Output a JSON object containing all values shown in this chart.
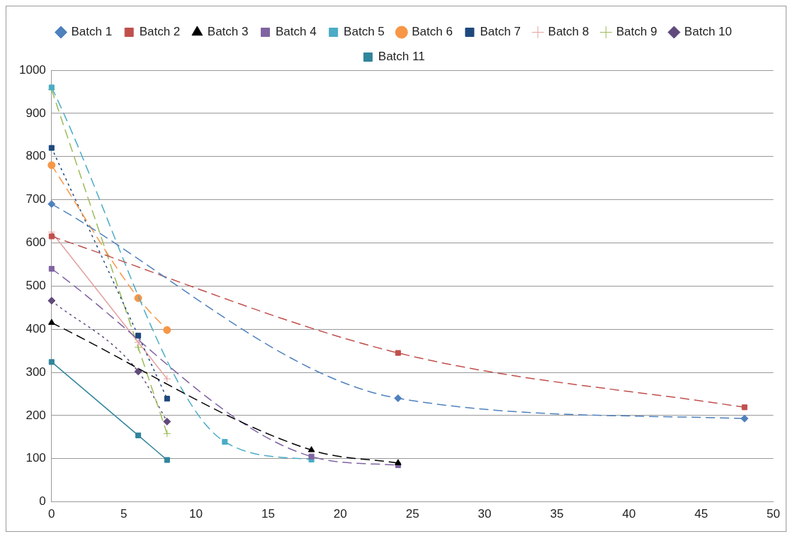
{
  "chart_data": {
    "type": "line",
    "legend": "top",
    "grid": "y",
    "xlim": [
      0,
      50
    ],
    "xticks": [
      0,
      5,
      10,
      15,
      20,
      25,
      30,
      35,
      40,
      45,
      50
    ],
    "ylim": [
      0,
      1000
    ],
    "yticks": [
      0,
      100,
      200,
      300,
      400,
      500,
      600,
      700,
      800,
      900,
      1000
    ],
    "series": [
      {
        "name": "Batch 1",
        "color": "#4f81bd",
        "marker": "diamond",
        "line_style": "dashed",
        "x": [
          0,
          24,
          48
        ],
        "values": [
          690,
          240,
          193
        ]
      },
      {
        "name": "Batch 2",
        "color": "#c0504d",
        "marker": "square",
        "line_style": "dashed",
        "x": [
          0,
          24,
          48
        ],
        "values": [
          615,
          345,
          219
        ]
      },
      {
        "name": "Batch 3",
        "color": "#000000",
        "marker": "triangle",
        "line_style": "dashed",
        "x": [
          0,
          18,
          24
        ],
        "values": [
          415,
          120,
          90
        ]
      },
      {
        "name": "Batch 4",
        "color": "#8064a2",
        "marker": "square",
        "line_style": "dashed",
        "x": [
          0,
          18,
          24
        ],
        "values": [
          540,
          105,
          85
        ]
      },
      {
        "name": "Batch 5",
        "color": "#4bacc6",
        "marker": "square",
        "line_style": "dashed",
        "x": [
          0,
          12,
          18
        ],
        "values": [
          960,
          139,
          98
        ]
      },
      {
        "name": "Batch 6",
        "color": "#f79646",
        "marker": "circle",
        "line_style": "dashed",
        "x": [
          0,
          6,
          8
        ],
        "values": [
          780,
          472,
          398
        ]
      },
      {
        "name": "Batch 7",
        "color": "#1f497d",
        "marker": "square",
        "line_style": "dotted",
        "x": [
          0,
          6,
          8
        ],
        "values": [
          820,
          385,
          239
        ]
      },
      {
        "name": "Batch 8",
        "color": "#e6a0a0",
        "marker": "cross",
        "line_style": "solid",
        "x": [
          0,
          6,
          8
        ],
        "values": [
          625,
          370,
          285
        ]
      },
      {
        "name": "Batch 9",
        "color": "#9bbb59",
        "marker": "cross",
        "line_style": "dashed",
        "x": [
          0,
          6,
          8
        ],
        "values": [
          955,
          358,
          158
        ]
      },
      {
        "name": "Batch 10",
        "color": "#604a7b",
        "marker": "diamond",
        "line_style": "dotted",
        "x": [
          0,
          6,
          8
        ],
        "values": [
          466,
          302,
          186
        ]
      },
      {
        "name": "Batch 11",
        "color": "#31859c",
        "marker": "square",
        "line_style": "solid",
        "x": [
          0,
          6,
          8
        ],
        "values": [
          324,
          154,
          97
        ]
      }
    ]
  }
}
